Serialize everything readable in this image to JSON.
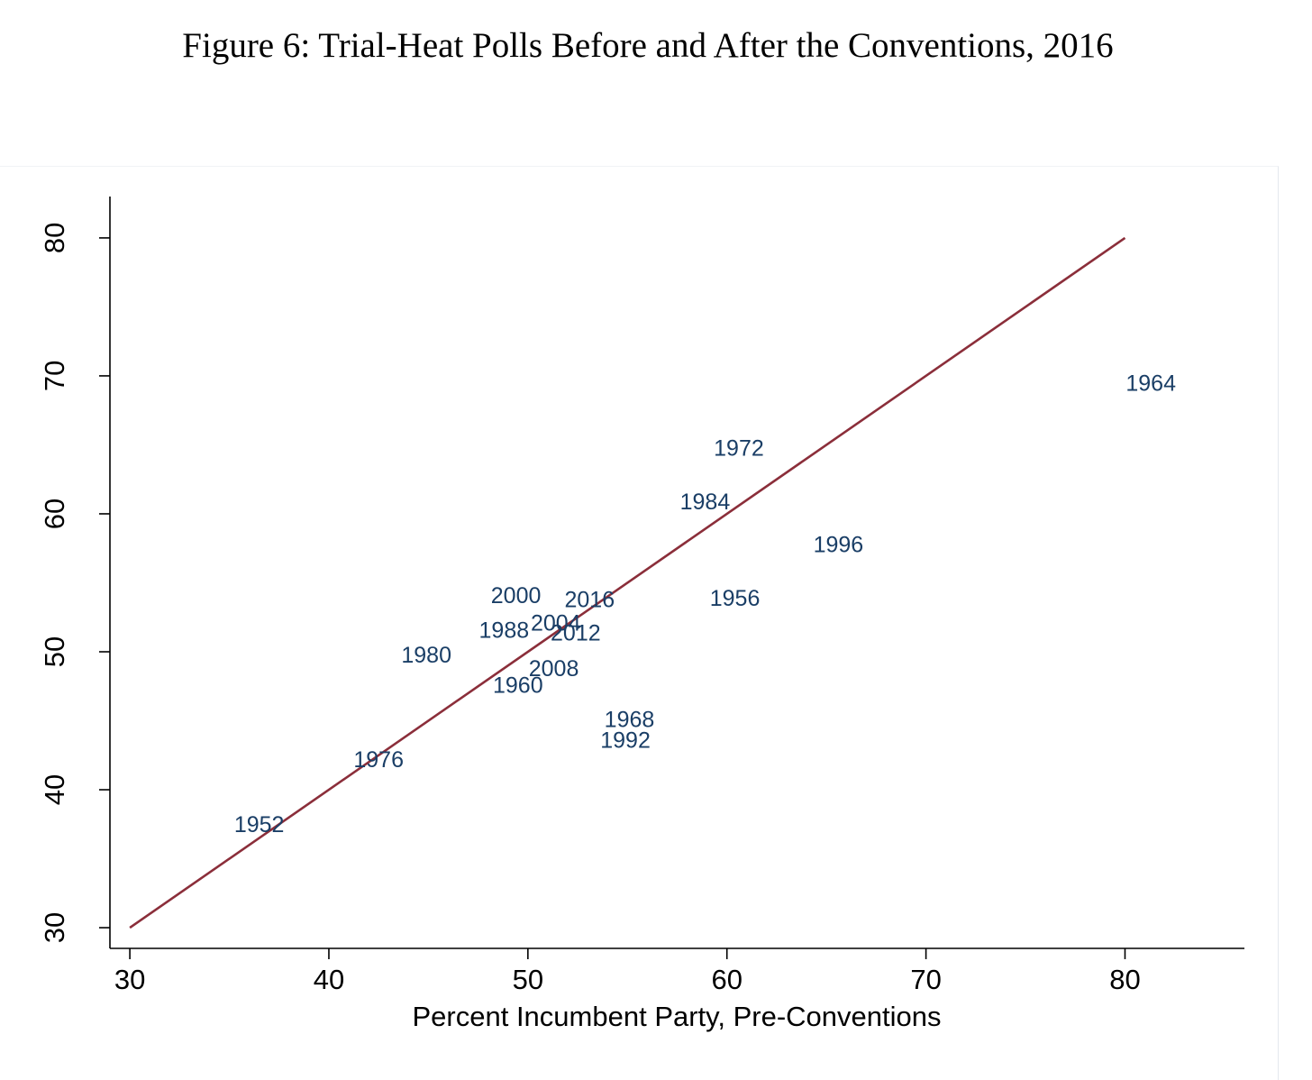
{
  "figure_title": "Figure 6:  Trial-Heat Polls Before and After the Conventions, 2016",
  "chart_data": {
    "type": "scatter",
    "title": "",
    "xlabel": "Percent Incumbent Party, Pre-Conventions",
    "ylabel": "",
    "xlim": [
      29,
      86
    ],
    "ylim": [
      28.5,
      83
    ],
    "xticks": [
      "30",
      "40",
      "50",
      "60",
      "70",
      "80"
    ],
    "yticks": [
      "30",
      "40",
      "50",
      "60",
      "70",
      "80"
    ],
    "grid": false,
    "legend": "none",
    "marker": "year-label",
    "point_color": "#1a3e66",
    "points": [
      {
        "label": "1952",
        "x": 36.5,
        "y": 37.5
      },
      {
        "label": "1956",
        "x": 60.4,
        "y": 53.9
      },
      {
        "label": "1960",
        "x": 49.5,
        "y": 47.6
      },
      {
        "label": "1964",
        "x": 81.3,
        "y": 69.5
      },
      {
        "label": "1968",
        "x": 55.1,
        "y": 45.1
      },
      {
        "label": "1972",
        "x": 60.6,
        "y": 64.8
      },
      {
        "label": "1976",
        "x": 42.5,
        "y": 42.2
      },
      {
        "label": "1980",
        "x": 44.9,
        "y": 49.8
      },
      {
        "label": "1984",
        "x": 58.9,
        "y": 60.9
      },
      {
        "label": "1988",
        "x": 48.8,
        "y": 51.6
      },
      {
        "label": "1992",
        "x": 54.9,
        "y": 43.6
      },
      {
        "label": "1996",
        "x": 65.6,
        "y": 57.8
      },
      {
        "label": "2000",
        "x": 49.4,
        "y": 54.1
      },
      {
        "label": "2004",
        "x": 51.4,
        "y": 52.1
      },
      {
        "label": "2008",
        "x": 51.3,
        "y": 48.8
      },
      {
        "label": "2012",
        "x": 52.4,
        "y": 51.4
      },
      {
        "label": "2016",
        "x": 53.1,
        "y": 53.8
      }
    ],
    "reference_line": {
      "type": "45-degree",
      "x": [
        30,
        80
      ],
      "y": [
        30,
        80
      ],
      "color": "#8b2e3a"
    }
  }
}
